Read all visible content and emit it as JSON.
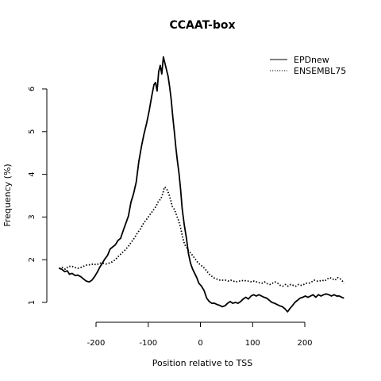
{
  "chart_data": {
    "type": "line",
    "title": "CCAAT-box",
    "xlabel": "Position relative to TSS",
    "ylabel": "Frequency (%)",
    "xlim": [
      -275,
      285
    ],
    "ylim": [
      0.75,
      6.85
    ],
    "x_ticks": [
      -200,
      -100,
      0,
      100,
      200
    ],
    "x_tick_labels": [
      "-200",
      "-100",
      "0",
      "100",
      "200"
    ],
    "y_ticks": [
      1,
      2,
      3,
      4,
      5,
      6
    ],
    "y_tick_labels": [
      "1",
      "2",
      "3",
      "4",
      "5",
      "6"
    ],
    "legend_position": "top-right",
    "grid": false,
    "series": [
      {
        "name": "EPDnew",
        "style": "solid",
        "color": "#000000",
        "points": [
          [
            -271,
            1.8
          ],
          [
            -266,
            1.78
          ],
          [
            -260,
            1.72
          ],
          [
            -255,
            1.74
          ],
          [
            -251,
            1.66
          ],
          [
            -246,
            1.68
          ],
          [
            -240,
            1.63
          ],
          [
            -235,
            1.64
          ],
          [
            -229,
            1.6
          ],
          [
            -224,
            1.55
          ],
          [
            -219,
            1.5
          ],
          [
            -213,
            1.48
          ],
          [
            -208,
            1.52
          ],
          [
            -203,
            1.6
          ],
          [
            -198,
            1.7
          ],
          [
            -193,
            1.82
          ],
          [
            -188,
            1.92
          ],
          [
            -183,
            2.02
          ],
          [
            -178,
            2.1
          ],
          [
            -173,
            2.25
          ],
          [
            -168,
            2.3
          ],
          [
            -163,
            2.35
          ],
          [
            -158,
            2.45
          ],
          [
            -153,
            2.5
          ],
          [
            -148,
            2.68
          ],
          [
            -143,
            2.85
          ],
          [
            -138,
            3.02
          ],
          [
            -133,
            3.35
          ],
          [
            -128,
            3.55
          ],
          [
            -123,
            3.82
          ],
          [
            -118,
            4.3
          ],
          [
            -113,
            4.65
          ],
          [
            -108,
            4.95
          ],
          [
            -103,
            5.2
          ],
          [
            -98,
            5.5
          ],
          [
            -93,
            5.85
          ],
          [
            -89,
            6.1
          ],
          [
            -86,
            6.15
          ],
          [
            -83,
            5.95
          ],
          [
            -80,
            6.4
          ],
          [
            -77,
            6.55
          ],
          [
            -74,
            6.35
          ],
          [
            -71,
            6.75
          ],
          [
            -68,
            6.6
          ],
          [
            -65,
            6.45
          ],
          [
            -62,
            6.3
          ],
          [
            -59,
            6.05
          ],
          [
            -56,
            5.75
          ],
          [
            -53,
            5.35
          ],
          [
            -50,
            5.0
          ],
          [
            -47,
            4.62
          ],
          [
            -44,
            4.3
          ],
          [
            -41,
            4.02
          ],
          [
            -38,
            3.65
          ],
          [
            -35,
            3.2
          ],
          [
            -31,
            2.82
          ],
          [
            -27,
            2.52
          ],
          [
            -23,
            2.15
          ],
          [
            -19,
            1.92
          ],
          [
            -15,
            1.78
          ],
          [
            -11,
            1.68
          ],
          [
            -7,
            1.58
          ],
          [
            -3,
            1.45
          ],
          [
            2,
            1.38
          ],
          [
            7,
            1.28
          ],
          [
            12,
            1.1
          ],
          [
            17,
            1.02
          ],
          [
            22,
            0.98
          ],
          [
            27,
            0.98
          ],
          [
            32,
            0.95
          ],
          [
            37,
            0.93
          ],
          [
            42,
            0.9
          ],
          [
            47,
            0.92
          ],
          [
            52,
            0.98
          ],
          [
            57,
            1.02
          ],
          [
            62,
            0.98
          ],
          [
            67,
            1.0
          ],
          [
            72,
            0.98
          ],
          [
            77,
            1.02
          ],
          [
            82,
            1.08
          ],
          [
            87,
            1.12
          ],
          [
            92,
            1.08
          ],
          [
            97,
            1.15
          ],
          [
            102,
            1.18
          ],
          [
            107,
            1.15
          ],
          [
            112,
            1.18
          ],
          [
            117,
            1.15
          ],
          [
            122,
            1.12
          ],
          [
            127,
            1.1
          ],
          [
            132,
            1.05
          ],
          [
            137,
            1.0
          ],
          [
            142,
            0.98
          ],
          [
            147,
            0.95
          ],
          [
            152,
            0.92
          ],
          [
            157,
            0.9
          ],
          [
            162,
            0.85
          ],
          [
            167,
            0.78
          ],
          [
            171,
            0.85
          ],
          [
            176,
            0.92
          ],
          [
            181,
            1.0
          ],
          [
            186,
            1.05
          ],
          [
            191,
            1.1
          ],
          [
            196,
            1.12
          ],
          [
            201,
            1.15
          ],
          [
            206,
            1.12
          ],
          [
            211,
            1.15
          ],
          [
            216,
            1.18
          ],
          [
            221,
            1.12
          ],
          [
            226,
            1.18
          ],
          [
            231,
            1.15
          ],
          [
            236,
            1.18
          ],
          [
            241,
            1.2
          ],
          [
            246,
            1.18
          ],
          [
            251,
            1.15
          ],
          [
            256,
            1.18
          ],
          [
            261,
            1.15
          ],
          [
            266,
            1.15
          ],
          [
            271,
            1.12
          ],
          [
            275,
            1.1
          ]
        ]
      },
      {
        "name": "ENSEMBL75",
        "style": "dotted",
        "color": "#000000",
        "points": [
          [
            -271,
            1.8
          ],
          [
            -265,
            1.82
          ],
          [
            -259,
            1.78
          ],
          [
            -253,
            1.84
          ],
          [
            -247,
            1.85
          ],
          [
            -241,
            1.82
          ],
          [
            -235,
            1.8
          ],
          [
            -229,
            1.82
          ],
          [
            -223,
            1.85
          ],
          [
            -217,
            1.88
          ],
          [
            -211,
            1.88
          ],
          [
            -205,
            1.9
          ],
          [
            -199,
            1.88
          ],
          [
            -193,
            1.92
          ],
          [
            -187,
            1.92
          ],
          [
            -181,
            1.9
          ],
          [
            -175,
            1.92
          ],
          [
            -169,
            1.95
          ],
          [
            -163,
            2.0
          ],
          [
            -157,
            2.08
          ],
          [
            -151,
            2.15
          ],
          [
            -145,
            2.22
          ],
          [
            -139,
            2.3
          ],
          [
            -133,
            2.4
          ],
          [
            -127,
            2.5
          ],
          [
            -121,
            2.62
          ],
          [
            -115,
            2.72
          ],
          [
            -109,
            2.85
          ],
          [
            -103,
            2.95
          ],
          [
            -97,
            3.05
          ],
          [
            -91,
            3.15
          ],
          [
            -85,
            3.25
          ],
          [
            -80,
            3.38
          ],
          [
            -76,
            3.42
          ],
          [
            -72,
            3.55
          ],
          [
            -69,
            3.7
          ],
          [
            -66,
            3.68
          ],
          [
            -63,
            3.62
          ],
          [
            -60,
            3.52
          ],
          [
            -57,
            3.4
          ],
          [
            -54,
            3.25
          ],
          [
            -50,
            3.18
          ],
          [
            -46,
            3.05
          ],
          [
            -42,
            2.92
          ],
          [
            -38,
            2.75
          ],
          [
            -34,
            2.52
          ],
          [
            -30,
            2.35
          ],
          [
            -26,
            2.28
          ],
          [
            -22,
            2.2
          ],
          [
            -18,
            2.15
          ],
          [
            -14,
            2.08
          ],
          [
            -10,
            2.02
          ],
          [
            -6,
            1.95
          ],
          [
            -2,
            1.9
          ],
          [
            3,
            1.85
          ],
          [
            8,
            1.8
          ],
          [
            13,
            1.72
          ],
          [
            18,
            1.65
          ],
          [
            23,
            1.6
          ],
          [
            28,
            1.56
          ],
          [
            33,
            1.54
          ],
          [
            38,
            1.52
          ],
          [
            43,
            1.52
          ],
          [
            48,
            1.52
          ],
          [
            53,
            1.5
          ],
          [
            58,
            1.52
          ],
          [
            63,
            1.5
          ],
          [
            68,
            1.48
          ],
          [
            73,
            1.5
          ],
          [
            78,
            1.5
          ],
          [
            83,
            1.52
          ],
          [
            88,
            1.5
          ],
          [
            93,
            1.5
          ],
          [
            98,
            1.48
          ],
          [
            103,
            1.5
          ],
          [
            108,
            1.48
          ],
          [
            113,
            1.46
          ],
          [
            118,
            1.45
          ],
          [
            123,
            1.48
          ],
          [
            128,
            1.44
          ],
          [
            133,
            1.42
          ],
          [
            138,
            1.45
          ],
          [
            143,
            1.48
          ],
          [
            148,
            1.45
          ],
          [
            153,
            1.4
          ],
          [
            158,
            1.38
          ],
          [
            163,
            1.42
          ],
          [
            168,
            1.38
          ],
          [
            173,
            1.42
          ],
          [
            178,
            1.4
          ],
          [
            183,
            1.38
          ],
          [
            188,
            1.42
          ],
          [
            193,
            1.4
          ],
          [
            198,
            1.42
          ],
          [
            203,
            1.45
          ],
          [
            208,
            1.45
          ],
          [
            213,
            1.48
          ],
          [
            218,
            1.52
          ],
          [
            223,
            1.5
          ],
          [
            228,
            1.5
          ],
          [
            233,
            1.52
          ],
          [
            238,
            1.5
          ],
          [
            243,
            1.55
          ],
          [
            248,
            1.58
          ],
          [
            253,
            1.55
          ],
          [
            258,
            1.52
          ],
          [
            263,
            1.58
          ],
          [
            268,
            1.55
          ],
          [
            272,
            1.5
          ],
          [
            275,
            1.45
          ]
        ]
      }
    ]
  }
}
